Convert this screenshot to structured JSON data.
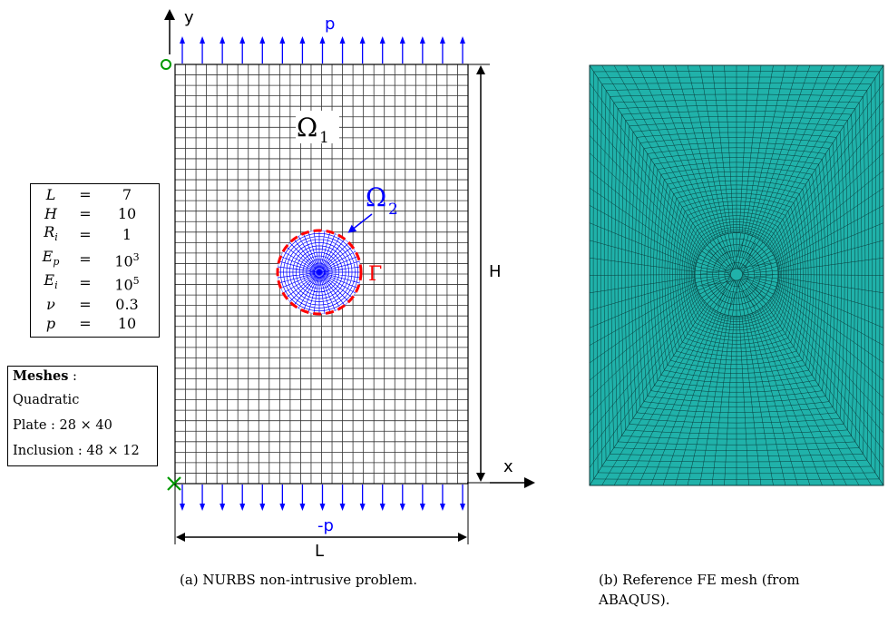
{
  "labels": {
    "y_axis": "y",
    "x_axis": "x",
    "pressure_top": "p",
    "pressure_bottom": "-p",
    "height": "H",
    "length": "L",
    "omega1_base": "Ω",
    "omega1_sub": "1",
    "omega2_base": "Ω",
    "omega2_sub": "2",
    "gamma": "Γ"
  },
  "parameters": [
    {
      "symbol": "L",
      "sub": "",
      "eq": "=",
      "value": "7",
      "sup": ""
    },
    {
      "symbol": "H",
      "sub": "",
      "eq": "=",
      "value": "10",
      "sup": ""
    },
    {
      "symbol": "R",
      "sub": "i",
      "eq": "=",
      "value": "1",
      "sup": ""
    },
    {
      "symbol": "E",
      "sub": "p",
      "eq": "=",
      "value": "10",
      "sup": "3"
    },
    {
      "symbol": "E",
      "sub": "i",
      "eq": "=",
      "value": "10",
      "sup": "5"
    },
    {
      "symbol": "ν",
      "sub": "",
      "eq": "=",
      "value": "0.3",
      "sup": ""
    },
    {
      "symbol": "p",
      "sub": "",
      "eq": "=",
      "value": "10",
      "sup": ""
    }
  ],
  "meshes": {
    "title": "Meshes",
    "title_suffix": " :",
    "order": "Quadratic",
    "plate": "Plate : 28 × 40",
    "inclusion": "Inclusion : 48 × 12"
  },
  "captions": {
    "a": "(a) NURBS non-intrusive problem.",
    "b_line1": "(b)  Reference  FE  mesh  (from",
    "b_line2": "ABAQUS)."
  },
  "colors": {
    "load_arrows": "#0000ff",
    "interface": "#ff0000",
    "support": "#009900",
    "inclusion_mesh": "#0000ff",
    "fe_mesh_fill": "#20b2aa",
    "fe_mesh_lines": "#0a3a3a"
  }
}
